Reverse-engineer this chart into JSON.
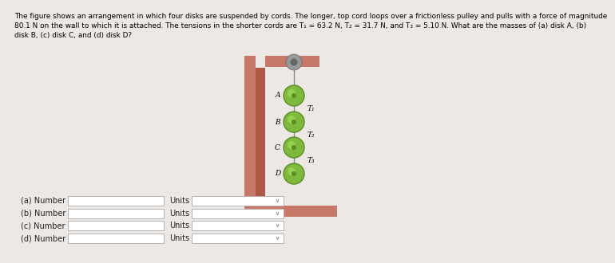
{
  "bg_color": "#ede8e3",
  "title_text": "The figure shows an arrangement in which four disks are suspended by cords. The longer, top cord loops over a frictionless pulley and pulls with a force of magnitude\n80.1 N on the wall to which it is attached. The tensions in the shorter cords are T₁ = 63.2 N, T₂ = 31.7 N, and T₃ = 5.10 N. What are the masses of (a) disk A, (b)\ndisk B, (c) disk C, and (d) disk D?",
  "disk_labels": [
    "A",
    "B",
    "C",
    "D"
  ],
  "tension_labels": [
    "T₁",
    "T₂",
    "T₃"
  ],
  "disk_color": "#7dba3c",
  "disk_edge_color": "#5a8c28",
  "disk_highlight": "#a8e060",
  "wall_color": "#c87868",
  "wall_inner": "#b05848",
  "form_labels": [
    "(a) Number",
    "(b) Number",
    "(c) Number",
    "(d) Number"
  ],
  "units_label": "Units",
  "input_box_color": "#ffffff",
  "input_border": "#aaaaaa",
  "rope_color": "#888888",
  "pulley_outer": "#999999",
  "pulley_inner": "#666666"
}
